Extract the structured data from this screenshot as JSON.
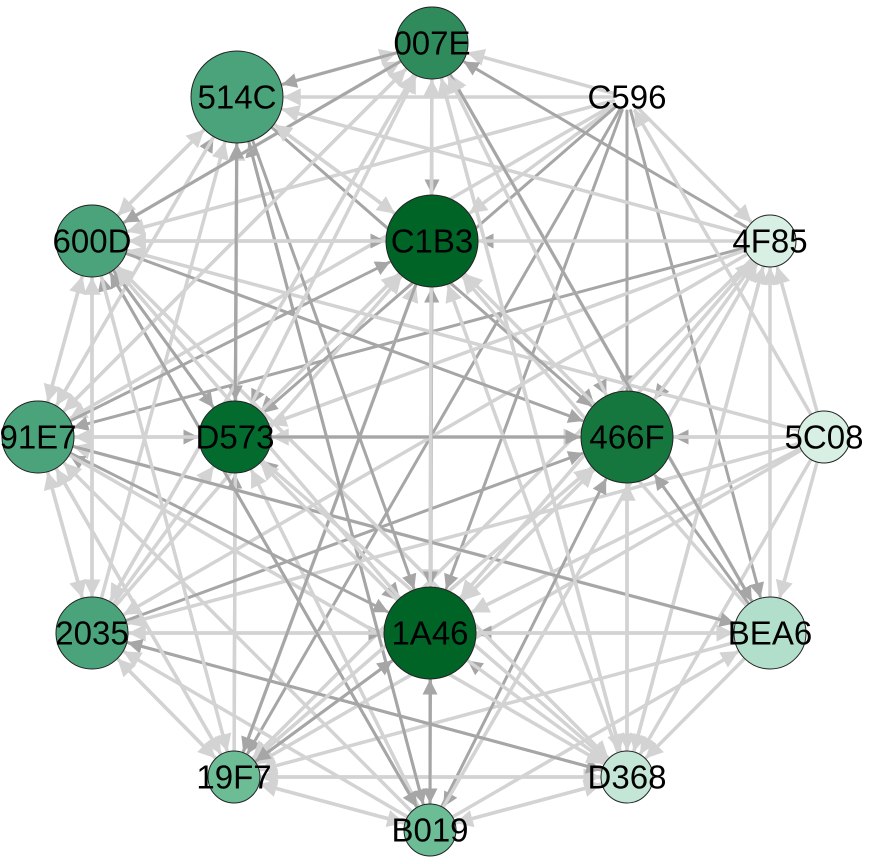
{
  "graph": {
    "type": "directed-network",
    "arrow_color_dark": "#a6a6a6",
    "arrow_color_light": "#d3d3d3",
    "node_outline_color": "#222222",
    "nodes": [
      {
        "id": "007E",
        "label": "007E",
        "color": "#2f8b5c",
        "size": "medium"
      },
      {
        "id": "514C",
        "label": "514C",
        "color": "#4aa37a",
        "size": "large"
      },
      {
        "id": "C596",
        "label": "C596",
        "color": "#ffffff",
        "size": "none"
      },
      {
        "id": "600D",
        "label": "600D",
        "color": "#4aa37a",
        "size": "medium"
      },
      {
        "id": "C1B3",
        "label": "C1B3",
        "color": "#006427",
        "size": "large"
      },
      {
        "id": "4F85",
        "label": "4F85",
        "color": "#d8efe4",
        "size": "small"
      },
      {
        "id": "91E7",
        "label": "91E7",
        "color": "#4aa37a",
        "size": "medium"
      },
      {
        "id": "D573",
        "label": "D573",
        "color": "#046b2f",
        "size": "medium"
      },
      {
        "id": "466F",
        "label": "466F",
        "color": "#15773d",
        "size": "large"
      },
      {
        "id": "5C08",
        "label": "5C08",
        "color": "#d8efe4",
        "size": "small"
      },
      {
        "id": "2035",
        "label": "2035",
        "color": "#4aa37a",
        "size": "medium"
      },
      {
        "id": "1A46",
        "label": "1A46",
        "color": "#006427",
        "size": "large"
      },
      {
        "id": "BEA6",
        "label": "BEA6",
        "color": "#b2dfcb",
        "size": "medium"
      },
      {
        "id": "19F7",
        "label": "19F7",
        "color": "#6cbc96",
        "size": "small"
      },
      {
        "id": "D368",
        "label": "D368",
        "color": "#c4e6d6",
        "size": "small"
      },
      {
        "id": "B019",
        "label": "B019",
        "color": "#6cbc96",
        "size": "small"
      }
    ],
    "edges": [
      [
        "C596",
        "007E",
        "light"
      ],
      [
        "C596",
        "514C",
        "light"
      ],
      [
        "C596",
        "C1B3",
        "light"
      ],
      [
        "C596",
        "4F85",
        "light"
      ],
      [
        "C596",
        "D573",
        "dark"
      ],
      [
        "C596",
        "466F",
        "dark"
      ],
      [
        "C596",
        "1A46",
        "dark"
      ],
      [
        "C596",
        "BEA6",
        "dark"
      ],
      [
        "C596",
        "19F7",
        "dark"
      ],
      [
        "C596",
        "600D",
        "light"
      ],
      [
        "C596",
        "91E7",
        "light"
      ],
      [
        "4F85",
        "007E",
        "dark"
      ],
      [
        "4F85",
        "514C",
        "light"
      ],
      [
        "4F85",
        "C1B3",
        "dark"
      ],
      [
        "4F85",
        "600D",
        "light"
      ],
      [
        "4F85",
        "91E7",
        "dark"
      ],
      [
        "4F85",
        "D573",
        "light"
      ],
      [
        "4F85",
        "466F",
        "dark"
      ],
      [
        "4F85",
        "2035",
        "light"
      ],
      [
        "4F85",
        "1A46",
        "light"
      ],
      [
        "4F85",
        "19F7",
        "light"
      ],
      [
        "4F85",
        "B019",
        "dark"
      ],
      [
        "4F85",
        "D368",
        "light"
      ],
      [
        "5C08",
        "466F",
        "dark"
      ],
      [
        "5C08",
        "4F85",
        "light"
      ],
      [
        "5C08",
        "C596",
        "light"
      ],
      [
        "5C08",
        "1A46",
        "light"
      ],
      [
        "5C08",
        "D573",
        "light"
      ],
      [
        "5C08",
        "91E7",
        "light"
      ],
      [
        "5C08",
        "2035",
        "light"
      ],
      [
        "5C08",
        "19F7",
        "light"
      ],
      [
        "5C08",
        "BEA6",
        "light"
      ],
      [
        "5C08",
        "D368",
        "light"
      ],
      [
        "5C08",
        "600D",
        "light"
      ],
      [
        "BEA6",
        "466F",
        "dark"
      ],
      [
        "BEA6",
        "1A46",
        "dark"
      ],
      [
        "BEA6",
        "4F85",
        "light"
      ],
      [
        "BEA6",
        "2035",
        "light"
      ],
      [
        "BEA6",
        "19F7",
        "light"
      ],
      [
        "BEA6",
        "C1B3",
        "light"
      ],
      [
        "BEA6",
        "007E",
        "light"
      ],
      [
        "BEA6",
        "D368",
        "light"
      ],
      [
        "BEA6",
        "91E7",
        "light"
      ],
      [
        "D368",
        "466F",
        "light"
      ],
      [
        "D368",
        "1A46",
        "dark"
      ],
      [
        "D368",
        "D573",
        "dark"
      ],
      [
        "D368",
        "C1B3",
        "light"
      ],
      [
        "D368",
        "91E7",
        "dark"
      ],
      [
        "D368",
        "2035",
        "dark"
      ],
      [
        "D368",
        "19F7",
        "light"
      ],
      [
        "D368",
        "B019",
        "light"
      ],
      [
        "D368",
        "4F85",
        "light"
      ],
      [
        "D368",
        "007E",
        "light"
      ],
      [
        "D368",
        "600D",
        "light"
      ],
      [
        "B019",
        "1A46",
        "dark"
      ],
      [
        "B019",
        "D573",
        "light"
      ],
      [
        "B019",
        "C1B3",
        "dark"
      ],
      [
        "B019",
        "466F",
        "dark"
      ],
      [
        "B019",
        "514C",
        "dark"
      ],
      [
        "B019",
        "600D",
        "dark"
      ],
      [
        "B019",
        "19F7",
        "light"
      ],
      [
        "B019",
        "BEA6",
        "light"
      ],
      [
        "B019",
        "91E7",
        "light"
      ],
      [
        "B019",
        "2035",
        "light"
      ],
      [
        "B019",
        "4F85",
        "light"
      ],
      [
        "B019",
        "D368",
        "light"
      ],
      [
        "19F7",
        "D573",
        "dark"
      ],
      [
        "19F7",
        "1A46",
        "dark"
      ],
      [
        "19F7",
        "514C",
        "light"
      ],
      [
        "19F7",
        "600D",
        "dark"
      ],
      [
        "19F7",
        "C1B3",
        "light"
      ],
      [
        "19F7",
        "2035",
        "light"
      ],
      [
        "19F7",
        "91E7",
        "light"
      ],
      [
        "19F7",
        "466F",
        "light"
      ],
      [
        "19F7",
        "B019",
        "light"
      ],
      [
        "19F7",
        "D368",
        "light"
      ],
      [
        "2035",
        "1A46",
        "dark"
      ],
      [
        "2035",
        "91E7",
        "light"
      ],
      [
        "2035",
        "600D",
        "light"
      ],
      [
        "2035",
        "D573",
        "light"
      ],
      [
        "2035",
        "C1B3",
        "light"
      ],
      [
        "2035",
        "466F",
        "dark"
      ],
      [
        "2035",
        "D368",
        "dark"
      ],
      [
        "2035",
        "BEA6",
        "light"
      ],
      [
        "2035",
        "19F7",
        "light"
      ],
      [
        "2035",
        "007E",
        "light"
      ],
      [
        "2035",
        "514C",
        "light"
      ],
      [
        "91E7",
        "D573",
        "dark"
      ],
      [
        "91E7",
        "C1B3",
        "dark"
      ],
      [
        "91E7",
        "600D",
        "light"
      ],
      [
        "91E7",
        "514C",
        "dark"
      ],
      [
        "91E7",
        "007E",
        "light"
      ],
      [
        "91E7",
        "1A46",
        "dark"
      ],
      [
        "91E7",
        "2035",
        "light"
      ],
      [
        "91E7",
        "19F7",
        "light"
      ],
      [
        "91E7",
        "D368",
        "light"
      ],
      [
        "91E7",
        "BEA6",
        "dark"
      ],
      [
        "91E7",
        "466F",
        "light"
      ],
      [
        "600D",
        "C1B3",
        "dark"
      ],
      [
        "600D",
        "514C",
        "light"
      ],
      [
        "600D",
        "007E",
        "light"
      ],
      [
        "600D",
        "D573",
        "dark"
      ],
      [
        "600D",
        "466F",
        "dark"
      ],
      [
        "600D",
        "1A46",
        "dark"
      ],
      [
        "600D",
        "91E7",
        "light"
      ],
      [
        "600D",
        "2035",
        "light"
      ],
      [
        "600D",
        "B019",
        "dark"
      ],
      [
        "600D",
        "19F7",
        "light"
      ],
      [
        "600D",
        "D368",
        "light"
      ],
      [
        "514C",
        "007E",
        "light"
      ],
      [
        "514C",
        "C1B3",
        "light"
      ],
      [
        "514C",
        "D573",
        "dark"
      ],
      [
        "514C",
        "600D",
        "light"
      ],
      [
        "514C",
        "466F",
        "dark"
      ],
      [
        "514C",
        "1A46",
        "dark"
      ],
      [
        "514C",
        "91E7",
        "light"
      ],
      [
        "514C",
        "B019",
        "dark"
      ],
      [
        "007E",
        "C1B3",
        "dark"
      ],
      [
        "007E",
        "514C",
        "dark"
      ],
      [
        "007E",
        "466F",
        "dark"
      ],
      [
        "007E",
        "D573",
        "dark"
      ],
      [
        "007E",
        "1A46",
        "light"
      ],
      [
        "007E",
        "600D",
        "dark"
      ],
      [
        "007E",
        "BEA6",
        "dark"
      ],
      [
        "007E",
        "D368",
        "light"
      ],
      [
        "007E",
        "91E7",
        "light"
      ],
      [
        "007E",
        "2035",
        "light"
      ],
      [
        "C1B3",
        "466F",
        "dark"
      ],
      [
        "C1B3",
        "1A46",
        "dark"
      ],
      [
        "C1B3",
        "D573",
        "dark"
      ],
      [
        "C1B3",
        "600D",
        "light"
      ],
      [
        "C1B3",
        "19F7",
        "dark"
      ],
      [
        "C1B3",
        "514C",
        "light"
      ],
      [
        "D573",
        "466F",
        "dark"
      ],
      [
        "D573",
        "1A46",
        "dark"
      ],
      [
        "D573",
        "C1B3",
        "light"
      ],
      [
        "D573",
        "514C",
        "dark"
      ],
      [
        "D573",
        "600D",
        "dark"
      ],
      [
        "D573",
        "007E",
        "light"
      ],
      [
        "D573",
        "D368",
        "light"
      ],
      [
        "466F",
        "1A46",
        "light"
      ],
      [
        "466F",
        "4F85",
        "light"
      ],
      [
        "466F",
        "007E",
        "light"
      ],
      [
        "466F",
        "D368",
        "light"
      ],
      [
        "466F",
        "19F7",
        "light"
      ],
      [
        "466F",
        "C1B3",
        "light"
      ],
      [
        "1A46",
        "C1B3",
        "dark"
      ],
      [
        "1A46",
        "466F",
        "light"
      ],
      [
        "1A46",
        "D573",
        "light"
      ],
      [
        "1A46",
        "4F85",
        "light"
      ],
      [
        "1A46",
        "007E",
        "light"
      ],
      [
        "1A46",
        "600D",
        "light"
      ],
      [
        "1A46",
        "D368",
        "light"
      ],
      [
        "1A46",
        "19F7",
        "dark"
      ],
      [
        "1A46",
        "B019",
        "dark"
      ]
    ]
  }
}
